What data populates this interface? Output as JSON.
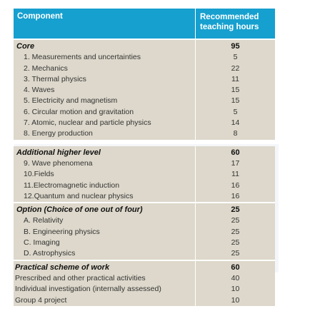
{
  "header": {
    "component": "Component",
    "hours_line1": "Recommended",
    "hours_line2": "teaching hours"
  },
  "groups": [
    {
      "title": "Core",
      "total": "95",
      "items": [
        {
          "label": "1. Measurements and uncertainties",
          "hours": "5"
        },
        {
          "label": "2. Mechanics",
          "hours": "22"
        },
        {
          "label": "3. Thermal physics",
          "hours": "11"
        },
        {
          "label": "4. Waves",
          "hours": "15"
        },
        {
          "label": "5. Electricity and magnetism",
          "hours": "15"
        },
        {
          "label": "6. Circular motion and gravitation",
          "hours": "5"
        },
        {
          "label": "7. Atomic, nuclear and particle physics",
          "hours": "14"
        },
        {
          "label": "8. Energy production",
          "hours": "8"
        }
      ]
    },
    {
      "title": "Additional higher level",
      "total": "60",
      "items": [
        {
          "label": "9. Wave phenomena",
          "hours": "17"
        },
        {
          "label": "10.Fields",
          "hours": "11"
        },
        {
          "label": "11.Electromagnetic induction",
          "hours": "16"
        },
        {
          "label": "12.Quantum and nuclear physics",
          "hours": "16"
        }
      ]
    },
    {
      "title": "Option (Choice of one out of four)",
      "total": "25",
      "items": [
        {
          "label": "A. Relativity",
          "hours": "25"
        },
        {
          "label": "B. Engineering physics",
          "hours": "25"
        },
        {
          "label": "C. Imaging",
          "hours": "25"
        },
        {
          "label": "D. Astrophysics",
          "hours": "25"
        }
      ]
    },
    {
      "title": "Practical scheme of work",
      "total": "60",
      "items": [
        {
          "label": "Prescribed and other practical activities",
          "hours": "40"
        },
        {
          "label": "Individual investigation (internally assessed)",
          "hours": "10"
        },
        {
          "label": "Group 4 project",
          "hours": "10"
        }
      ]
    }
  ],
  "colors": {
    "header_bg": "#16a0cf",
    "row_bg": "#ddd8cb",
    "backdrop": "#f4f6f9"
  }
}
